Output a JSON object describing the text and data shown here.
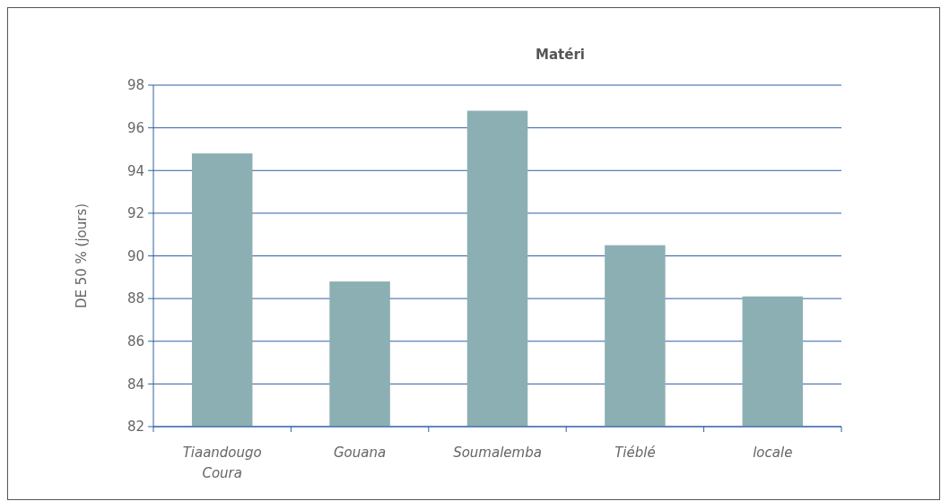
{
  "chart_data": {
    "type": "bar",
    "title": "Matéri",
    "ylabel": "DE 50 % (jours)",
    "categories": [
      "Tiaandougo Coura",
      "Gouana",
      "Soumalemba",
      "Tiéblé",
      "locale"
    ],
    "values": [
      94.8,
      88.8,
      96.8,
      90.5,
      88.1
    ],
    "color": "#8cafb4",
    "ylim": [
      82,
      98
    ],
    "yticks": [
      82,
      84,
      86,
      88,
      90,
      92,
      94,
      96,
      98
    ],
    "grid": "y"
  }
}
